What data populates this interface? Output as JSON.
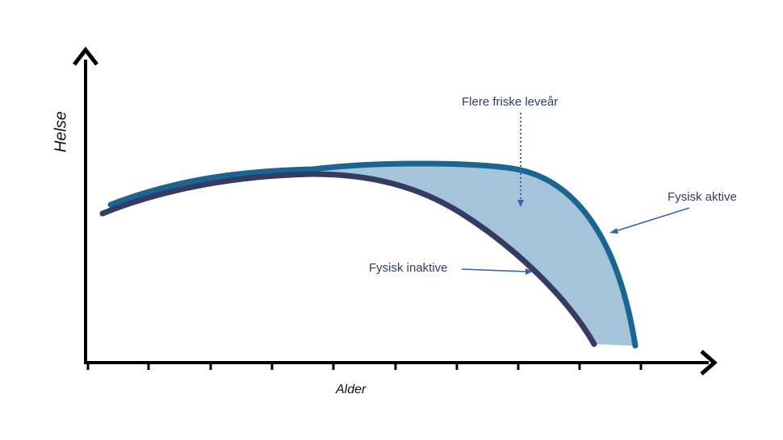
{
  "diagram": {
    "y_axis_label": "Helse",
    "x_axis_label": "Alder",
    "annotations": {
      "gap": "Flere friske leveår",
      "active": "Fysisk aktive",
      "inactive": "Fysisk inaktive"
    },
    "colors": {
      "active_line": "#1b6592",
      "inactive_line": "#363b63",
      "gap_fill": "#a3c4d9",
      "annotation_text": "#2f3f5f",
      "arrow": "#3a64a6",
      "axis": "#000000"
    }
  }
}
